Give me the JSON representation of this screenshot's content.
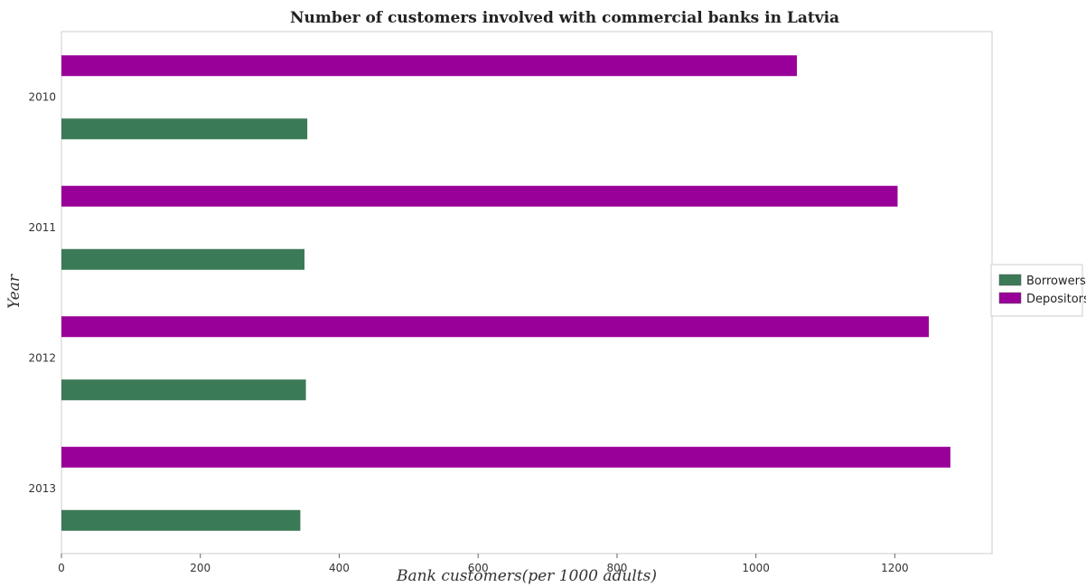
{
  "chart_data": {
    "type": "bar",
    "orientation": "horizontal",
    "title": "Number of customers involved with commercial banks in Latvia",
    "xlabel": "Bank customers(per 1000 adults)",
    "ylabel": "Year",
    "categories": [
      "2010",
      "2011",
      "2012",
      "2013"
    ],
    "series": [
      {
        "name": "Borrowers",
        "color": "#3b7a57",
        "values": [
          354,
          350,
          352,
          344
        ]
      },
      {
        "name": "Depositors",
        "color": "#990099",
        "values": [
          1059,
          1204,
          1249,
          1280
        ]
      }
    ],
    "xlim": [
      0,
      1340
    ],
    "xticks": [
      0,
      200,
      400,
      600,
      800,
      1000,
      1200
    ],
    "legend_position": "right",
    "grid": false
  }
}
